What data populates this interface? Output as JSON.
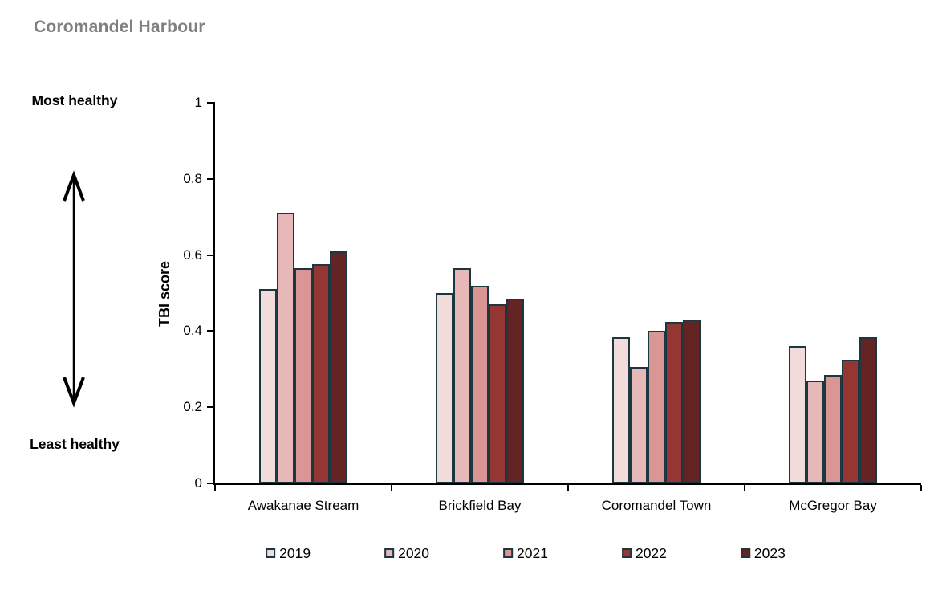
{
  "title": "Coromandel Harbour",
  "annotations": {
    "top_scale_label": "Most healthy",
    "bottom_scale_label": "Least healthy"
  },
  "chart_data": {
    "type": "bar",
    "title": "Coromandel Harbour",
    "xlabel": "",
    "ylabel": "TBI score",
    "ylim": [
      0,
      1
    ],
    "yticks": [
      0,
      0.2,
      0.4,
      0.6,
      0.8,
      1
    ],
    "grid": false,
    "legend_position": "bottom",
    "bar_border_color": "#1d3741",
    "categories": [
      "Awakanae Stream",
      "Brickfield Bay",
      "Coromandel Town",
      "McGregor Bay"
    ],
    "series": [
      {
        "name": "2019",
        "color": "#f2dcdb",
        "values": [
          0.51,
          0.5,
          0.385,
          0.36
        ]
      },
      {
        "name": "2020",
        "color": "#e6b9b8",
        "values": [
          0.71,
          0.565,
          0.305,
          0.27
        ]
      },
      {
        "name": "2021",
        "color": "#d99694",
        "values": [
          0.565,
          0.52,
          0.4,
          0.285
        ]
      },
      {
        "name": "2022",
        "color": "#943634",
        "values": [
          0.575,
          0.47,
          0.425,
          0.325
        ]
      },
      {
        "name": "2023",
        "color": "#632423",
        "values": [
          0.61,
          0.485,
          0.43,
          0.385
        ]
      }
    ]
  }
}
